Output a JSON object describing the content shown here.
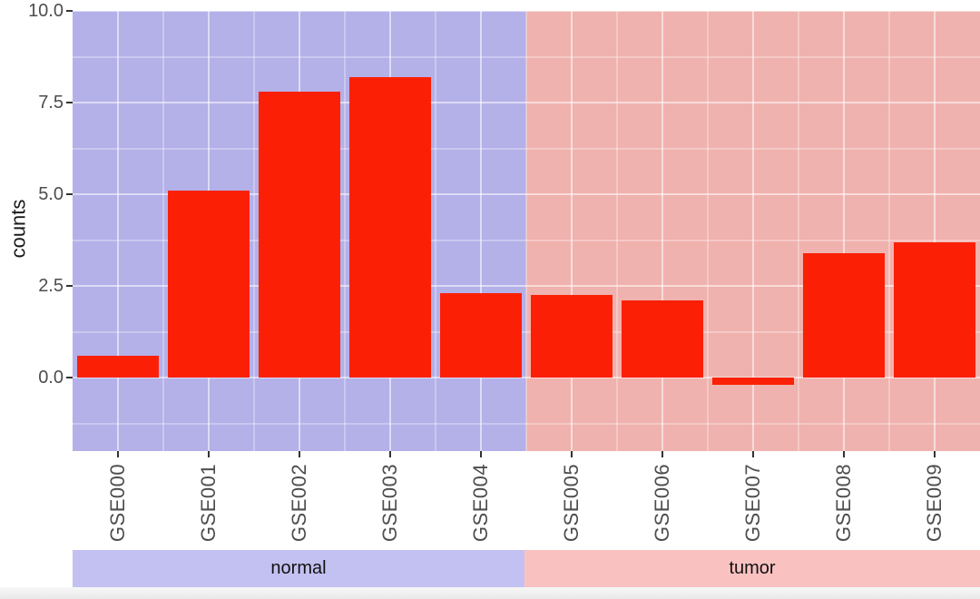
{
  "chart_data": {
    "type": "bar",
    "title": "",
    "xlabel": "",
    "ylabel": "counts",
    "categories": [
      "GSE000",
      "GSE001",
      "GSE002",
      "GSE003",
      "GSE004",
      "GSE005",
      "GSE006",
      "GSE007",
      "GSE008",
      "GSE009"
    ],
    "values": [
      0.6,
      5.1,
      7.8,
      8.2,
      2.3,
      2.25,
      2.1,
      -0.2,
      3.4,
      3.7
    ],
    "facets": [
      {
        "label": "normal",
        "categories": [
          "GSE000",
          "GSE001",
          "GSE002",
          "GSE003",
          "GSE004"
        ],
        "panel_fill": "#b4b0e8",
        "strip_fill": "#c3c1f1"
      },
      {
        "label": "tumor",
        "categories": [
          "GSE005",
          "GSE006",
          "GSE007",
          "GSE008",
          "GSE009"
        ],
        "panel_fill": "#f0b2ae",
        "strip_fill": "#f9c2c1"
      }
    ],
    "bar_color": "#fb2005",
    "y_ticks": [
      {
        "value": 0,
        "label": "0.0"
      },
      {
        "value": 2.5,
        "label": "2.5"
      },
      {
        "value": 5,
        "label": "5.0"
      },
      {
        "value": 7.5,
        "label": "7.5"
      },
      {
        "value": 10,
        "label": "10.0"
      }
    ],
    "y_minor_values": [
      -1.25,
      1.25,
      3.75,
      6.25,
      8.75
    ],
    "ylim": [
      -2,
      10
    ],
    "grid": true,
    "legend_position": "none",
    "axis_text_color": "#4d4d4d",
    "strip_text_color": "#111111"
  }
}
